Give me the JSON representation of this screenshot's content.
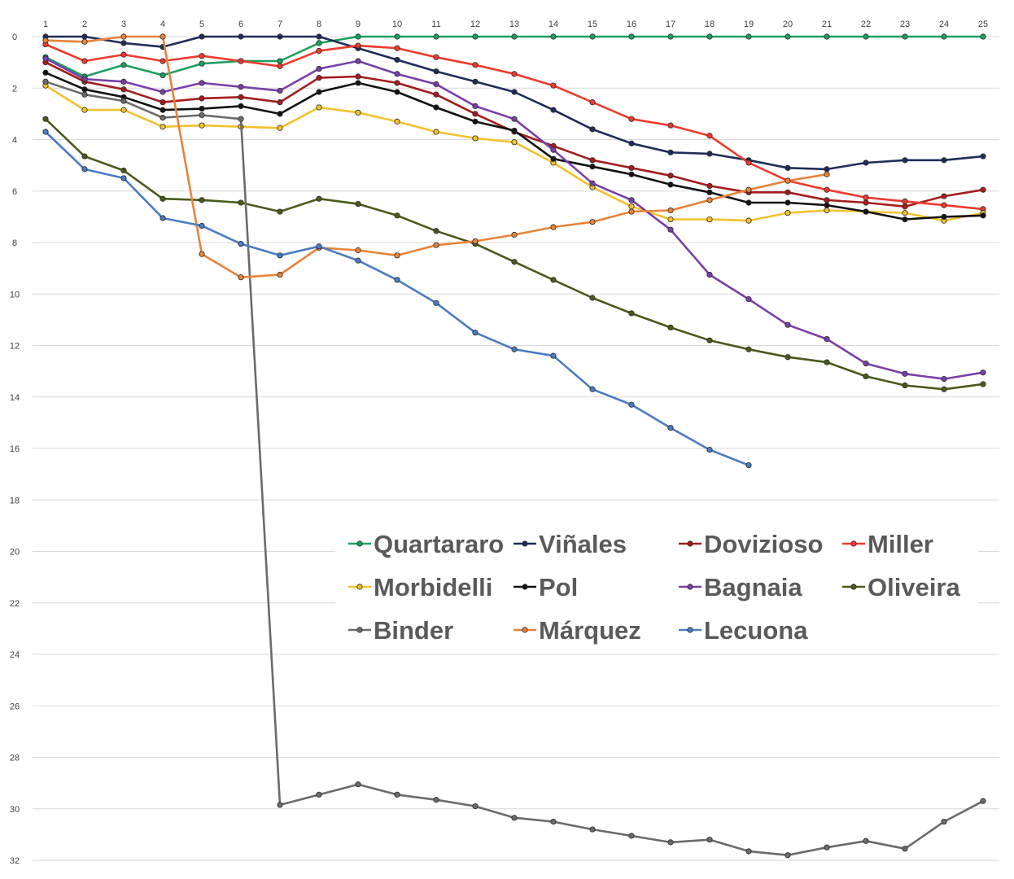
{
  "chart_data": {
    "type": "line",
    "title": "",
    "xlabel": "",
    "ylabel": "",
    "x": [
      1,
      2,
      3,
      4,
      5,
      6,
      7,
      8,
      9,
      10,
      11,
      12,
      13,
      14,
      15,
      16,
      17,
      18,
      19,
      20,
      21,
      22,
      23,
      24,
      25
    ],
    "x_tick_labels": [
      "1",
      "2",
      "3",
      "4",
      "5",
      "6",
      "7",
      "8",
      "9",
      "10",
      "11",
      "12",
      "13",
      "14",
      "15",
      "16",
      "17",
      "18",
      "19",
      "20",
      "21",
      "22",
      "23",
      "24",
      "25"
    ],
    "y_tick_labels": [
      "0",
      "2",
      "4",
      "6",
      "8",
      "10",
      "12",
      "14",
      "16",
      "18",
      "20",
      "22",
      "24",
      "26",
      "28",
      "30",
      "32"
    ],
    "y_ticks": [
      0,
      2,
      4,
      6,
      8,
      10,
      12,
      14,
      16,
      18,
      20,
      22,
      24,
      26,
      28,
      30,
      32
    ],
    "ylim": [
      0,
      32
    ],
    "y_reversed": true,
    "x_axis_position": "top",
    "grid": "horizontal",
    "legend_position": "center",
    "series": [
      {
        "name": "Quartararo",
        "color": "#1aa160",
        "values": [
          0.8,
          1.55,
          1.1,
          1.5,
          1.05,
          0.95,
          0.95,
          0.25,
          0,
          0,
          0,
          0,
          0,
          0,
          0,
          0,
          0,
          0,
          0,
          0,
          0,
          0,
          0,
          0,
          0
        ]
      },
      {
        "name": "Viñales",
        "color": "#1f2d5a",
        "values": [
          0,
          0,
          0.25,
          0.4,
          0,
          0,
          0,
          0,
          0.45,
          0.9,
          1.35,
          1.75,
          2.15,
          2.85,
          3.6,
          4.15,
          4.5,
          4.55,
          4.8,
          5.1,
          5.15,
          4.9,
          4.8,
          4.8,
          4.65
        ]
      },
      {
        "name": "Dovizioso",
        "color": "#a51c1c",
        "values": [
          1.0,
          1.75,
          2.05,
          2.55,
          2.4,
          2.35,
          2.55,
          1.6,
          1.55,
          1.8,
          2.25,
          3.0,
          3.7,
          4.25,
          4.8,
          5.1,
          5.4,
          5.8,
          6.05,
          6.05,
          6.35,
          6.45,
          6.6,
          6.2,
          5.95
        ]
      },
      {
        "name": "Miller",
        "color": "#ee3b2d",
        "values": [
          0.3,
          0.95,
          0.7,
          0.95,
          0.75,
          0.95,
          1.15,
          0.55,
          0.35,
          0.45,
          0.8,
          1.1,
          1.45,
          1.9,
          2.55,
          3.2,
          3.45,
          3.85,
          4.9,
          5.6,
          5.95,
          6.25,
          6.4,
          6.55,
          6.7
        ]
      },
      {
        "name": "Morbidelli",
        "color": "#f2c12e",
        "values": [
          1.9,
          2.85,
          2.85,
          3.5,
          3.45,
          3.5,
          3.55,
          2.75,
          2.95,
          3.3,
          3.7,
          3.95,
          4.1,
          4.9,
          5.85,
          6.6,
          7.1,
          7.1,
          7.15,
          6.85,
          6.75,
          6.8,
          6.85,
          7.15,
          6.85
        ]
      },
      {
        "name": "Pol",
        "color": "#111111",
        "values": [
          1.4,
          2.05,
          2.35,
          2.85,
          2.8,
          2.7,
          3.0,
          2.15,
          1.8,
          2.15,
          2.75,
          3.3,
          3.65,
          4.75,
          5.05,
          5.35,
          5.75,
          6.05,
          6.45,
          6.45,
          6.55,
          6.8,
          7.1,
          7.0,
          6.95
        ]
      },
      {
        "name": "Bagnaia",
        "color": "#7a3fa8",
        "values": [
          0.85,
          1.65,
          1.75,
          2.15,
          1.8,
          1.95,
          2.1,
          1.25,
          0.95,
          1.45,
          1.85,
          2.7,
          3.2,
          4.4,
          5.7,
          6.35,
          7.5,
          9.25,
          10.2,
          11.2,
          11.75,
          12.7,
          13.1,
          13.3,
          13.05
        ]
      },
      {
        "name": "Oliveira",
        "color": "#4a5a1c",
        "values": [
          3.2,
          4.65,
          5.2,
          6.3,
          6.35,
          6.45,
          6.8,
          6.3,
          6.5,
          6.95,
          7.55,
          8.05,
          8.75,
          9.45,
          10.15,
          10.75,
          11.3,
          11.8,
          12.15,
          12.45,
          12.65,
          13.2,
          13.55,
          13.7,
          13.5
        ]
      },
      {
        "name": "Binder",
        "color": "#6b6b6b",
        "values": [
          1.75,
          2.25,
          2.5,
          3.15,
          3.05,
          3.2,
          29.85,
          29.45,
          29.05,
          29.45,
          29.65,
          29.9,
          30.35,
          30.5,
          30.8,
          31.05,
          31.3,
          31.2,
          31.65,
          31.8,
          31.5,
          31.25,
          31.55,
          30.5,
          29.7
        ]
      },
      {
        "name": "Márquez",
        "color": "#e8833a",
        "values": [
          0.15,
          0.2,
          0,
          0,
          8.45,
          9.35,
          9.25,
          8.2,
          8.3,
          8.5,
          8.1,
          7.95,
          7.7,
          7.4,
          7.2,
          6.8,
          6.75,
          6.35,
          5.95,
          5.6,
          5.35,
          null,
          null,
          null,
          null
        ]
      },
      {
        "name": "Lecuona",
        "color": "#4a7cc3",
        "values": [
          3.7,
          5.15,
          5.5,
          7.05,
          7.35,
          8.05,
          8.5,
          8.15,
          8.7,
          9.45,
          10.35,
          11.5,
          12.15,
          12.4,
          13.7,
          14.3,
          15.2,
          16.05,
          16.65,
          null,
          null,
          null,
          null,
          null,
          null
        ]
      }
    ]
  }
}
